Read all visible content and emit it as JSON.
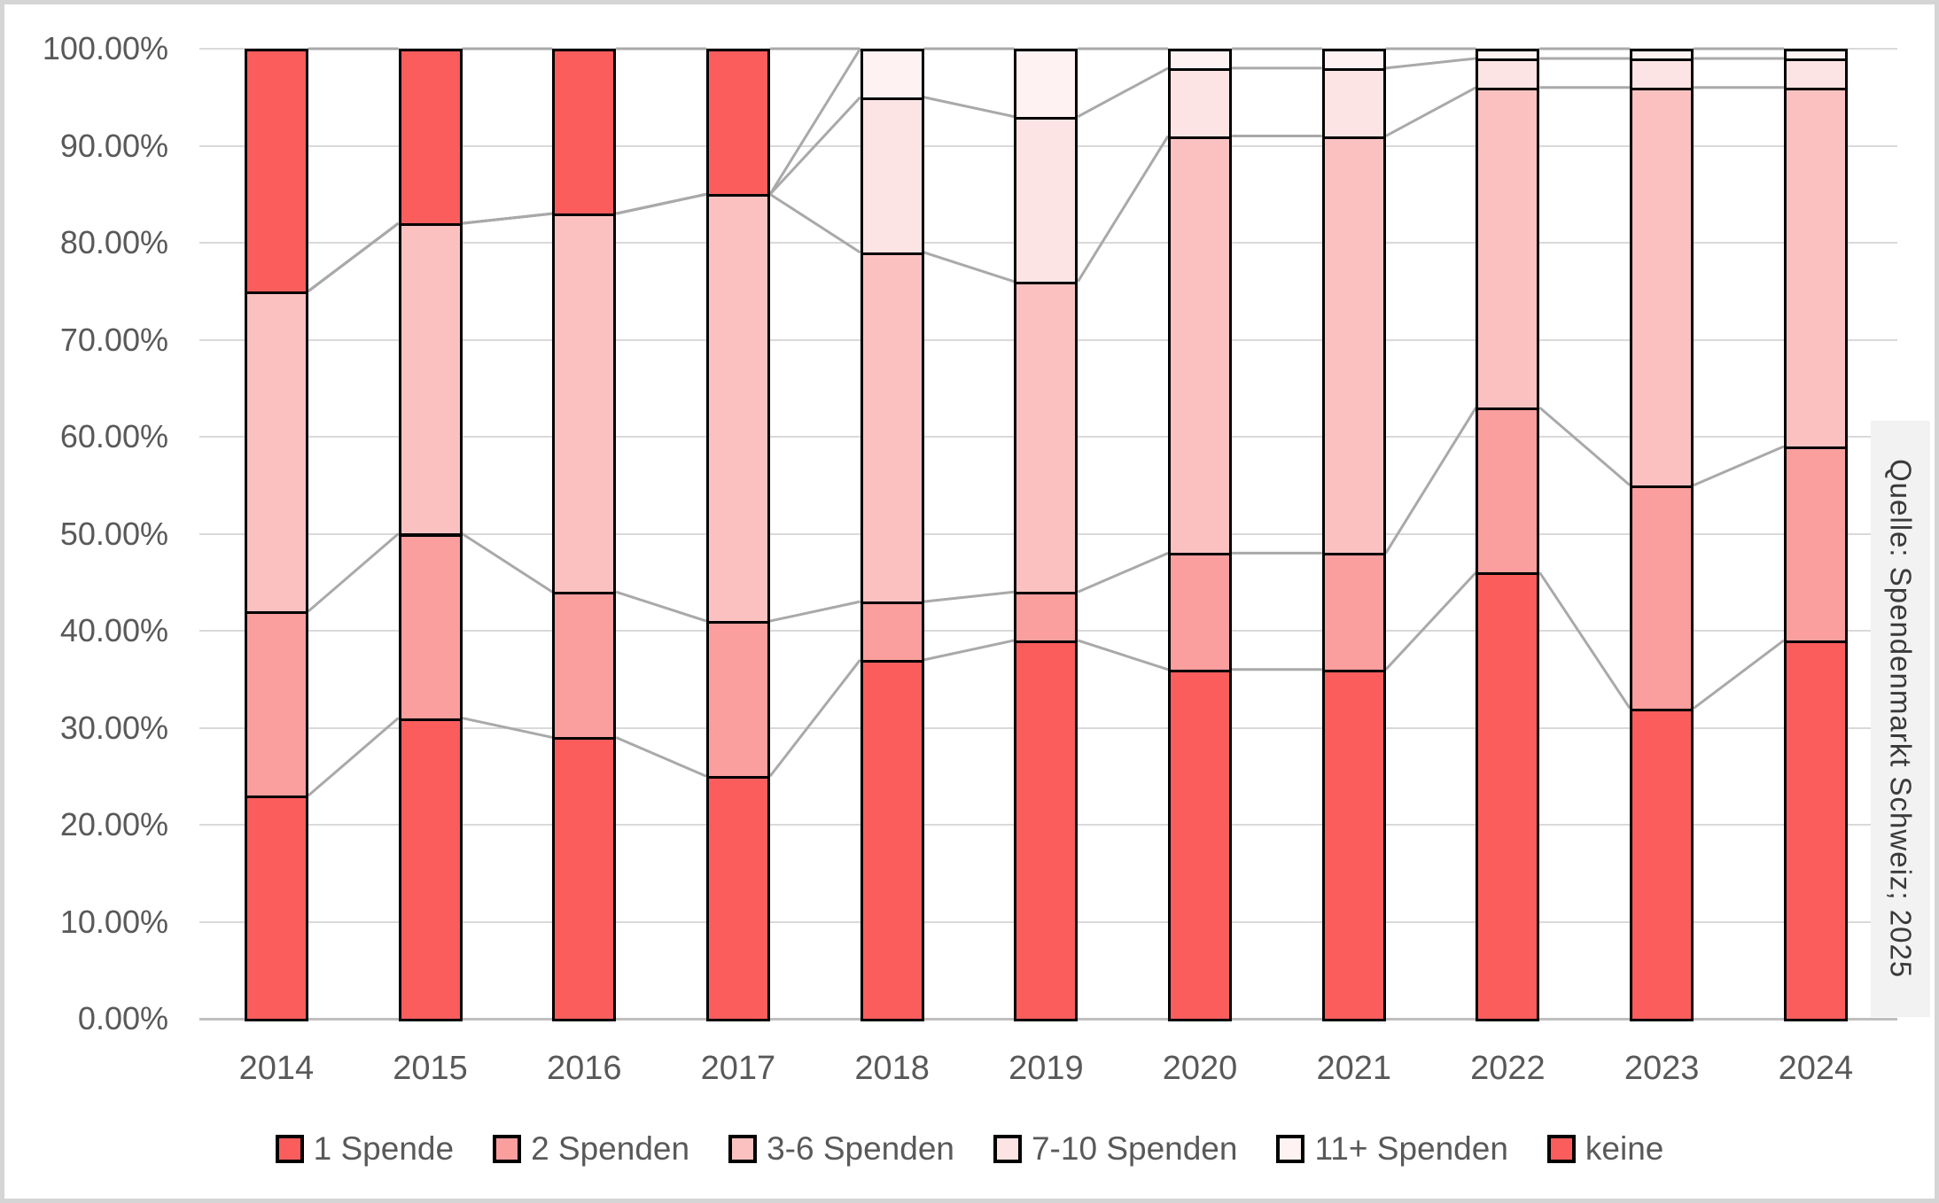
{
  "source_label": "Quelle: Spendenmarkt Schweiz; 2025",
  "colors": {
    "red": "#FB5D5D",
    "pink_medium": "#FA9E9E",
    "pink_light": "#FBC1C1",
    "pink_faint": "#FDE4E4",
    "pink_ghost": "#FEF2F2",
    "gridline": "#D9D9D9",
    "axis_line": "#BFBFBF",
    "series_line": "#A9A9A9",
    "axis_text": "#595959",
    "bar_border": "#000000",
    "source_bg": "#F2F2F2",
    "source_text": "#3A3A3A",
    "frame_border": "#D5D5D5"
  },
  "chart_data": {
    "type": "bar",
    "variant": "100-percent-stacked-columns-with-series-lines",
    "title": "",
    "xlabel": "",
    "ylabel": "",
    "categories": [
      "2014",
      "2015",
      "2016",
      "2017",
      "2018",
      "2019",
      "2020",
      "2021",
      "2022",
      "2023",
      "2024"
    ],
    "series": [
      {
        "name": "1 Spende",
        "color": "#FB5D5D",
        "values": [
          23,
          31,
          29,
          25,
          37,
          39,
          36,
          36,
          46,
          32,
          39
        ]
      },
      {
        "name": "2 Spenden",
        "color": "#FA9E9E",
        "values": [
          19,
          19,
          15,
          16,
          6,
          5,
          12,
          12,
          17,
          23,
          20
        ]
      },
      {
        "name": "3-6 Spenden",
        "color": "#FBC1C1",
        "values": [
          33,
          32,
          39,
          44,
          36,
          32,
          43,
          43,
          33,
          41,
          37
        ]
      },
      {
        "name": "7-10 Spenden",
        "color": "#FDE4E4",
        "values": [
          0,
          0,
          0,
          0,
          16,
          17,
          7,
          7,
          3,
          3,
          3
        ]
      },
      {
        "name": "11+ Spenden",
        "color": "#FEF2F2",
        "values": [
          0,
          0,
          0,
          0,
          5,
          7,
          2,
          2,
          1,
          1,
          1
        ]
      },
      {
        "name": "keine",
        "color": "#FB5D5D",
        "values": [
          25,
          18,
          17,
          15,
          0,
          0,
          0,
          0,
          0,
          0,
          0
        ]
      }
    ],
    "y_axis": {
      "min": 0,
      "max": 100,
      "tick_step": 10,
      "tick_labels": [
        "0.00%",
        "10.00%",
        "20.00%",
        "30.00%",
        "40.00%",
        "50.00%",
        "60.00%",
        "70.00%",
        "80.00%",
        "90.00%",
        "100.00%"
      ]
    },
    "legend": {
      "position": "bottom",
      "entries": [
        "1 Spende",
        "2 Spenden",
        "3-6 Spenden",
        "7-10 Spenden",
        "11+ Spenden",
        "keine"
      ]
    },
    "grid": true,
    "series_lines": true
  }
}
